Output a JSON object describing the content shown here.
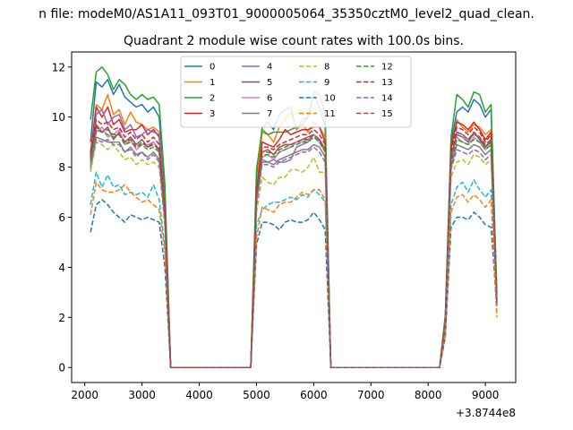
{
  "figure": {
    "suptitle": "n file: modeM0/AS1A11_093T01_9000005064_35350cztM0_level2_quad_clean.",
    "x_offset_label": "+3.8744e8"
  },
  "chart_data": {
    "type": "line",
    "title": "Quadrant 2 module wise count rates with 100.0s bins.",
    "xlabel": "",
    "ylabel": "",
    "xlim": [
      1770,
      9530
    ],
    "ylim": [
      -0.6,
      12.6
    ],
    "xticks": [
      2000,
      3000,
      4000,
      5000,
      6000,
      7000,
      8000,
      9000
    ],
    "yticks": [
      0,
      2,
      4,
      6,
      8,
      10,
      12
    ],
    "grid": false,
    "legend_placement": "upper center",
    "legend_columns": 4,
    "x": [
      2100,
      2200,
      2300,
      2400,
      2500,
      2600,
      2700,
      2800,
      2900,
      3000,
      3100,
      3200,
      3300,
      3400,
      3500,
      3600,
      3700,
      3800,
      3900,
      4000,
      4100,
      4200,
      4300,
      4400,
      4500,
      4600,
      4700,
      4800,
      4900,
      5000,
      5100,
      5200,
      5300,
      5400,
      5500,
      5600,
      5700,
      5800,
      5900,
      6000,
      6100,
      6200,
      6300,
      6400,
      6500,
      6600,
      6700,
      6800,
      6900,
      7000,
      7100,
      7200,
      7300,
      7400,
      7500,
      7600,
      7700,
      7800,
      7900,
      8000,
      8100,
      8200,
      8300,
      8400,
      8500,
      8600,
      8700,
      8800,
      8900,
      9000,
      9100,
      9200
    ],
    "series": [
      {
        "name": "0",
        "color": "#1f77b4",
        "dash": "solid",
        "values": [
          9.0,
          11.4,
          11.2,
          11.5,
          10.9,
          11.3,
          10.8,
          10.6,
          10.4,
          10.5,
          10.2,
          10.4,
          10.0,
          7.0,
          0,
          0,
          0,
          0,
          0,
          0,
          0,
          0,
          0,
          0,
          0,
          0,
          0,
          0,
          0,
          7.6,
          9.6,
          9.8,
          9.5,
          10.1,
          10.3,
          10.4,
          9.5,
          9.9,
          10.0,
          10.9,
          10.4,
          9.6,
          0,
          0,
          0,
          0,
          0,
          0,
          0,
          0,
          0,
          0,
          0,
          0,
          0,
          0,
          0,
          0,
          0,
          0,
          0,
          0,
          2.0,
          9.0,
          10.2,
          10.4,
          10.2,
          10.7,
          10.5,
          10.0,
          10.3,
          2.9
        ]
      },
      {
        "name": "1",
        "color": "#ff7f0e",
        "dash": "solid",
        "values": [
          8.6,
          10.5,
          10.3,
          10.9,
          10.1,
          10.3,
          9.7,
          10.2,
          9.8,
          9.7,
          9.5,
          9.6,
          9.4,
          6.5,
          0,
          0,
          0,
          0,
          0,
          0,
          0,
          0,
          0,
          0,
          0,
          0,
          0,
          0,
          0,
          7.3,
          9.4,
          9.3,
          9.0,
          9.6,
          9.9,
          10.2,
          9.5,
          9.7,
          9.4,
          9.8,
          9.6,
          9.2,
          0,
          0,
          0,
          0,
          0,
          0,
          0,
          0,
          0,
          0,
          0,
          0,
          0,
          0,
          0,
          0,
          0,
          0,
          0,
          0,
          1.9,
          8.7,
          9.9,
          9.6,
          9.4,
          9.7,
          9.6,
          9.3,
          9.5,
          2.8
        ]
      },
      {
        "name": "2",
        "color": "#2ca02c",
        "dash": "solid",
        "values": [
          9.9,
          11.8,
          12.0,
          11.7,
          11.1,
          11.5,
          11.3,
          10.9,
          10.7,
          10.9,
          10.7,
          10.8,
          10.5,
          7.3,
          0,
          0,
          0,
          0,
          0,
          0,
          0,
          0,
          0,
          0,
          0,
          0,
          0,
          0,
          0,
          7.9,
          9.5,
          9.3,
          9.4,
          9.4,
          9.4,
          9.5,
          9.6,
          9.7,
          10.0,
          11.0,
          10.9,
          10.1,
          0,
          0,
          0,
          0,
          0,
          0,
          0,
          0,
          0,
          0,
          0,
          0,
          0,
          0,
          0,
          0,
          0,
          0,
          0,
          0,
          2.1,
          9.2,
          10.9,
          10.7,
          10.4,
          11.0,
          10.9,
          10.2,
          10.5,
          3.0
        ]
      },
      {
        "name": "3",
        "color": "#d62728",
        "dash": "solid",
        "values": [
          8.5,
          10.4,
          10.0,
          10.4,
          9.7,
          9.9,
          9.4,
          9.5,
          9.5,
          9.7,
          9.3,
          9.5,
          9.2,
          6.4,
          0,
          0,
          0,
          0,
          0,
          0,
          0,
          0,
          0,
          0,
          0,
          0,
          0,
          0,
          0,
          7.0,
          9.0,
          8.9,
          8.8,
          9.1,
          9.5,
          9.3,
          9.4,
          9.5,
          9.5,
          9.6,
          9.6,
          9.0,
          0,
          0,
          0,
          0,
          0,
          0,
          0,
          0,
          0,
          0,
          0,
          0,
          0,
          0,
          0,
          0,
          0,
          0,
          0,
          0,
          1.9,
          8.8,
          9.8,
          9.7,
          9.5,
          9.8,
          9.5,
          9.1,
          9.4,
          2.7
        ]
      },
      {
        "name": "4",
        "color": "#9467bd",
        "dash": "solid",
        "values": [
          8.4,
          10.1,
          10.3,
          9.7,
          10.0,
          10.1,
          9.5,
          9.7,
          9.2,
          9.3,
          9.5,
          9.4,
          9.3,
          6.3,
          0,
          0,
          0,
          0,
          0,
          0,
          0,
          0,
          0,
          0,
          0,
          0,
          0,
          0,
          0,
          6.9,
          8.3,
          8.2,
          8.3,
          8.2,
          8.2,
          8.3,
          8.8,
          8.9,
          9.0,
          9.3,
          9.0,
          8.7,
          0,
          0,
          0,
          0,
          0,
          0,
          0,
          0,
          0,
          0,
          0,
          0,
          0,
          0,
          0,
          0,
          0,
          0,
          0,
          0,
          1.8,
          8.3,
          9.4,
          9.3,
          9.1,
          9.3,
          9.2,
          8.8,
          9.1,
          2.6
        ]
      },
      {
        "name": "5",
        "color": "#8c564b",
        "dash": "solid",
        "values": [
          8.3,
          9.7,
          9.4,
          9.6,
          9.1,
          9.4,
          9.0,
          9.2,
          8.9,
          9.1,
          8.8,
          9.0,
          8.7,
          6.1,
          0,
          0,
          0,
          0,
          0,
          0,
          0,
          0,
          0,
          0,
          0,
          0,
          0,
          0,
          0,
          6.8,
          8.6,
          8.7,
          8.5,
          8.8,
          8.9,
          8.9,
          9.0,
          9.1,
          9.2,
          9.3,
          9.1,
          8.7,
          0,
          0,
          0,
          0,
          0,
          0,
          0,
          0,
          0,
          0,
          0,
          0,
          0,
          0,
          0,
          0,
          0,
          0,
          0,
          0,
          1.8,
          8.4,
          9.3,
          9.2,
          9.0,
          9.4,
          9.1,
          8.8,
          9.0,
          2.6
        ]
      },
      {
        "name": "6",
        "color": "#e377c2",
        "dash": "solid",
        "values": [
          8.0,
          9.4,
          9.6,
          9.2,
          9.3,
          9.5,
          8.9,
          9.1,
          8.7,
          8.9,
          8.9,
          9.0,
          8.6,
          6.0,
          0,
          0,
          0,
          0,
          0,
          0,
          0,
          0,
          0,
          0,
          0,
          0,
          0,
          0,
          0,
          6.7,
          8.4,
          8.5,
          8.3,
          8.6,
          8.7,
          8.8,
          9.0,
          9.0,
          9.1,
          9.3,
          9.0,
          8.6,
          0,
          0,
          0,
          0,
          0,
          0,
          0,
          0,
          0,
          0,
          0,
          0,
          0,
          0,
          0,
          0,
          0,
          0,
          0,
          0,
          1.8,
          8.2,
          9.2,
          9.0,
          8.9,
          9.2,
          9.0,
          8.7,
          8.9,
          2.6
        ]
      },
      {
        "name": "7",
        "color": "#7f7f7f",
        "dash": "solid",
        "values": [
          7.9,
          9.2,
          9.1,
          9.0,
          9.0,
          9.0,
          8.6,
          8.8,
          8.5,
          8.6,
          8.4,
          8.6,
          8.3,
          5.9,
          0,
          0,
          0,
          0,
          0,
          0,
          0,
          0,
          0,
          0,
          0,
          0,
          0,
          0,
          0,
          6.6,
          8.2,
          8.2,
          8.1,
          8.3,
          8.4,
          8.5,
          8.6,
          8.7,
          8.7,
          8.9,
          8.8,
          8.4,
          0,
          0,
          0,
          0,
          0,
          0,
          0,
          0,
          0,
          0,
          0,
          0,
          0,
          0,
          0,
          0,
          0,
          0,
          0,
          0,
          1.7,
          8.0,
          8.9,
          8.8,
          8.7,
          8.9,
          8.8,
          8.5,
          8.7,
          2.5
        ]
      },
      {
        "name": "8",
        "color": "#bcbd22",
        "dash": "dashed",
        "values": [
          7.8,
          9.0,
          8.9,
          8.7,
          8.9,
          8.6,
          8.3,
          8.4,
          8.1,
          8.3,
          8.1,
          8.2,
          8.0,
          5.6,
          0,
          0,
          0,
          0,
          0,
          0,
          0,
          0,
          0,
          0,
          0,
          0,
          0,
          0,
          0,
          6.2,
          7.6,
          7.4,
          7.3,
          7.6,
          7.6,
          7.9,
          7.9,
          7.8,
          8.0,
          8.4,
          7.8,
          7.8,
          0,
          0,
          0,
          0,
          0,
          0,
          0,
          0,
          0,
          0,
          0,
          0,
          0,
          0,
          0,
          0,
          0,
          0,
          0,
          0,
          1.6,
          7.6,
          8.2,
          8.3,
          8.1,
          8.5,
          8.4,
          8.1,
          8.3,
          2.4
        ]
      },
      {
        "name": "9",
        "color": "#17becf",
        "dash": "dashed",
        "values": [
          6.5,
          7.8,
          7.2,
          7.7,
          7.2,
          7.3,
          6.9,
          7.0,
          6.9,
          7.0,
          6.8,
          7.3,
          6.7,
          4.8,
          0,
          0,
          0,
          0,
          0,
          0,
          0,
          0,
          0,
          0,
          0,
          0,
          0,
          0,
          0,
          5.7,
          6.3,
          6.5,
          6.6,
          6.6,
          6.7,
          6.8,
          6.7,
          6.9,
          6.8,
          7.1,
          6.9,
          6.6,
          0,
          0,
          0,
          0,
          0,
          0,
          0,
          0,
          0,
          0,
          0,
          0,
          0,
          0,
          0,
          0,
          0,
          0,
          0,
          0,
          1.4,
          6.5,
          7.2,
          7.4,
          7.0,
          7.5,
          7.1,
          6.8,
          7.1,
          2.1
        ]
      },
      {
        "name": "10",
        "color": "#1f77b4",
        "dash": "dashed",
        "values": [
          5.4,
          6.5,
          6.7,
          6.5,
          6.2,
          6.0,
          5.8,
          6.1,
          6.0,
          5.9,
          6.0,
          5.9,
          5.8,
          4.0,
          0,
          0,
          0,
          0,
          0,
          0,
          0,
          0,
          0,
          0,
          0,
          0,
          0,
          0,
          0,
          4.9,
          5.8,
          5.8,
          5.7,
          5.5,
          5.8,
          5.9,
          5.8,
          5.8,
          5.9,
          6.2,
          5.9,
          5.5,
          0,
          0,
          0,
          0,
          0,
          0,
          0,
          0,
          0,
          0,
          0,
          0,
          0,
          0,
          0,
          0,
          0,
          0,
          0,
          0,
          1.2,
          5.6,
          6.0,
          6.0,
          5.9,
          6.2,
          6.0,
          5.7,
          5.6,
          2.4
        ]
      },
      {
        "name": "11",
        "color": "#ff7f0e",
        "dash": "dashed",
        "values": [
          6.1,
          7.4,
          7.1,
          7.0,
          7.0,
          7.1,
          7.3,
          7.0,
          6.8,
          6.6,
          6.7,
          6.5,
          6.3,
          4.6,
          0,
          0,
          0,
          0,
          0,
          0,
          0,
          0,
          0,
          0,
          0,
          0,
          0,
          0,
          0,
          5.2,
          6.4,
          6.3,
          6.2,
          6.5,
          6.6,
          6.6,
          6.8,
          7.0,
          6.9,
          7.1,
          7.1,
          6.7,
          0,
          0,
          0,
          0,
          0,
          0,
          0,
          0,
          0,
          0,
          0,
          0,
          0,
          0,
          0,
          0,
          0,
          0,
          0,
          0,
          1.3,
          6.2,
          6.8,
          6.9,
          6.6,
          6.9,
          6.7,
          6.4,
          6.7,
          2.0
        ]
      },
      {
        "name": "12",
        "color": "#2ca02c",
        "dash": "dashed",
        "values": [
          8.2,
          9.5,
          9.4,
          9.3,
          9.2,
          9.3,
          8.9,
          9.0,
          8.8,
          8.9,
          8.7,
          8.8,
          8.6,
          6.0,
          0,
          0,
          0,
          0,
          0,
          0,
          0,
          0,
          0,
          0,
          0,
          0,
          0,
          0,
          0,
          6.8,
          8.5,
          8.5,
          8.4,
          8.6,
          8.7,
          8.8,
          8.9,
          9.0,
          9.0,
          9.2,
          9.0,
          8.6,
          0,
          0,
          0,
          0,
          0,
          0,
          0,
          0,
          0,
          0,
          0,
          0,
          0,
          0,
          0,
          0,
          0,
          0,
          0,
          0,
          1.8,
          8.2,
          9.1,
          9.0,
          8.9,
          9.1,
          9.0,
          8.7,
          8.9,
          2.6
        ]
      },
      {
        "name": "13",
        "color": "#d62728",
        "dash": "dashed",
        "values": [
          8.6,
          9.9,
          9.7,
          9.8,
          9.5,
          9.6,
          9.2,
          9.4,
          9.1,
          9.3,
          9.0,
          9.2,
          8.9,
          6.2,
          0,
          0,
          0,
          0,
          0,
          0,
          0,
          0,
          0,
          0,
          0,
          0,
          0,
          0,
          0,
          7.0,
          8.8,
          8.8,
          8.7,
          8.9,
          9.0,
          9.1,
          9.2,
          9.3,
          9.3,
          9.5,
          9.3,
          8.9,
          0,
          0,
          0,
          0,
          0,
          0,
          0,
          0,
          0,
          0,
          0,
          0,
          0,
          0,
          0,
          0,
          0,
          0,
          0,
          0,
          1.9,
          8.6,
          9.6,
          9.5,
          9.3,
          9.6,
          9.4,
          9.0,
          9.3,
          2.7
        ]
      },
      {
        "name": "14",
        "color": "#9467bd",
        "dash": "dashed",
        "values": [
          8.1,
          9.1,
          9.0,
          9.1,
          8.9,
          8.9,
          8.6,
          8.7,
          8.4,
          8.6,
          8.3,
          8.5,
          8.2,
          5.8,
          0,
          0,
          0,
          0,
          0,
          0,
          0,
          0,
          0,
          0,
          0,
          0,
          0,
          0,
          0,
          6.5,
          8.1,
          8.1,
          8.0,
          8.2,
          8.3,
          8.4,
          8.5,
          8.6,
          8.6,
          8.8,
          8.6,
          8.2,
          0,
          0,
          0,
          0,
          0,
          0,
          0,
          0,
          0,
          0,
          0,
          0,
          0,
          0,
          0,
          0,
          0,
          0,
          0,
          0,
          1.7,
          7.9,
          8.7,
          8.6,
          8.5,
          8.7,
          8.6,
          8.3,
          8.5,
          2.5
        ]
      },
      {
        "name": "15",
        "color": "#8c564b",
        "dash": "dashed",
        "values": [
          8.4,
          9.6,
          9.4,
          9.5,
          9.3,
          9.3,
          9.0,
          9.1,
          8.8,
          9.0,
          8.8,
          8.9,
          8.7,
          6.1,
          0,
          0,
          0,
          0,
          0,
          0,
          0,
          0,
          0,
          0,
          0,
          0,
          0,
          0,
          0,
          6.9,
          8.6,
          8.6,
          8.5,
          8.7,
          8.8,
          8.9,
          9.0,
          9.1,
          9.1,
          9.3,
          9.1,
          8.7,
          0,
          0,
          0,
          0,
          0,
          0,
          0,
          0,
          0,
          0,
          0,
          0,
          0,
          0,
          0,
          0,
          0,
          0,
          0,
          0,
          1.8,
          8.4,
          9.4,
          9.3,
          9.1,
          9.4,
          9.2,
          8.9,
          9.1,
          2.6
        ]
      }
    ]
  }
}
